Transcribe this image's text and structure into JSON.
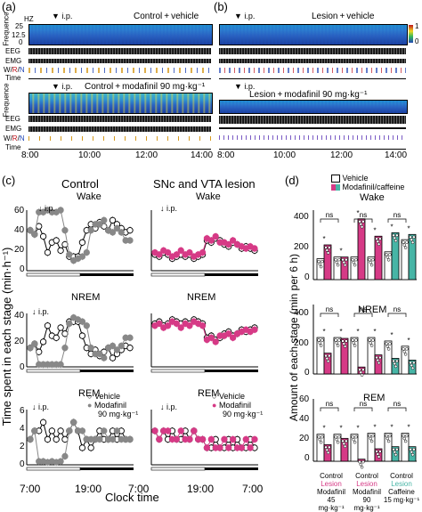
{
  "panels": {
    "a": {
      "label": "(a)",
      "top": {
        "title": "Control + vehicle",
        "ip": "i.p.",
        "hz": "HZ",
        "ticks": [
          "25",
          "12.5",
          "0"
        ]
      },
      "bottom": {
        "title": "Control + modafinil 90 mg·kg⁻¹",
        "ip": "i.p."
      },
      "rows": [
        "EEG",
        "EMG",
        "W/R/N",
        "Time"
      ],
      "wrn": {
        "w": "W",
        "r": "R",
        "n": "N",
        "slash": "/"
      },
      "ylabel": "Frequence",
      "times": [
        "8:00",
        "10:00",
        "12:00",
        "14:00"
      ]
    },
    "b": {
      "label": "(b)",
      "top": {
        "title": "Lesion + vehicle",
        "ip": "i.p."
      },
      "bottom": {
        "title": "Lesion + modafinil 90 mg·kg⁻¹",
        "ip": "i.p."
      },
      "colorbar": [
        "1",
        "0"
      ],
      "times": [
        "8:00",
        "10:00",
        "12:00",
        "14:00"
      ]
    },
    "c": {
      "label": "(c)",
      "col_left": "Control",
      "col_right": "SNc and VTA lesion",
      "ylabel": "Time spent in each stage (min·h⁻¹)",
      "xlabel": "Clock time",
      "xticks": [
        "7:00",
        "19:00",
        "7:00"
      ],
      "ip": "i.p.",
      "rows": [
        {
          "stage": "Wake",
          "yticks": [
            "60",
            "40",
            "20",
            "0"
          ]
        },
        {
          "stage": "NREM",
          "yticks": [
            "40",
            "20",
            "0"
          ]
        },
        {
          "stage": "REM",
          "yticks": [
            "6",
            "4",
            "2",
            "0"
          ]
        }
      ],
      "legend": {
        "vehicle": "Vehicle",
        "modafinil": "Modafinil",
        "dose": "90 mg·kg⁻¹"
      }
    },
    "d": {
      "label": "(d)",
      "ylabel": "Amount of each stage (min per 6 h)",
      "legend": {
        "vehicle": "Vehicle",
        "drug": "Modafinil/caffeine"
      },
      "rows": [
        {
          "stage": "Wake",
          "yticks": [
            "400",
            "200",
            "0"
          ]
        },
        {
          "stage": "NREM",
          "yticks": [
            "400",
            "200",
            "0"
          ]
        },
        {
          "stage": "REM",
          "yticks": [
            "60",
            "40",
            "20",
            "0"
          ]
        }
      ],
      "groups": [
        {
          "control": "Control",
          "lesion": "Lesion",
          "drug": "Modafinil",
          "dose": "45 mg·kg⁻¹"
        },
        {
          "control": "Control",
          "lesion": "Lesion",
          "drug": "Modafinil",
          "dose": "90 mg·kg⁻¹"
        },
        {
          "control": "Control",
          "lesion": "Lesion",
          "drug": "Caffeine",
          "dose": "15 mg·kg⁻¹"
        }
      ],
      "sig": {
        "star": "*",
        "ns": "ns",
        "hash": "#"
      },
      "colors": {
        "pink": "#d63a86",
        "teal": "#47b5a6"
      }
    }
  },
  "chart_data": [
    {
      "type": "bar",
      "panel": "d-wake",
      "ylim": [
        0,
        400
      ],
      "categories": [
        "Mod45 Ctrl",
        "Mod45 Les",
        "Mod90 Ctrl",
        "Mod90 Les",
        "Caf15 Ctrl",
        "Caf15 Les"
      ],
      "series": [
        {
          "name": "Vehicle",
          "values": [
            120,
            130,
            130,
            130,
            160,
            230
          ]
        },
        {
          "name": "Modafinil/caffeine",
          "values": [
            200,
            130,
            350,
            250,
            270,
            260
          ]
        }
      ]
    },
    {
      "type": "bar",
      "panel": "d-nrem",
      "ylim": [
        0,
        400
      ],
      "categories": [
        "Mod45 Ctrl",
        "Mod45 Les",
        "Mod90 Ctrl",
        "Mod90 Les",
        "Caf15 Ctrl",
        "Caf15 Les"
      ],
      "series": [
        {
          "name": "Vehicle",
          "values": [
            210,
            210,
            210,
            210,
            190,
            160
          ]
        },
        {
          "name": "Modafinil/caffeine",
          "values": [
            120,
            205,
            40,
            110,
            90,
            80
          ]
        }
      ]
    },
    {
      "type": "bar",
      "panel": "d-rem",
      "ylim": [
        0,
        60
      ],
      "categories": [
        "Mod45 Ctrl",
        "Mod45 Les",
        "Mod90 Ctrl",
        "Mod90 Les",
        "Caf15 Ctrl",
        "Caf15 Les"
      ],
      "series": [
        {
          "name": "Vehicle",
          "values": [
            26,
            26,
            26,
            27,
            27,
            27
          ]
        },
        {
          "name": "Modafinil/caffeine",
          "values": [
            16,
            22,
            2,
            12,
            14,
            14
          ]
        }
      ]
    },
    {
      "type": "line",
      "panel": "c-control-wake",
      "ylim": [
        0,
        60
      ],
      "series": [
        {
          "name": "Vehicle",
          "values": [
            40,
            36,
            44,
            34,
            18,
            28,
            30,
            20,
            26,
            14,
            14,
            14,
            28,
            40,
            46,
            42,
            48,
            44,
            40,
            50,
            46,
            42,
            38,
            40
          ]
        },
        {
          "name": "Modafinil",
          "values": [
            40,
            36,
            58,
            58,
            60,
            58,
            58,
            60,
            40,
            16,
            10,
            12,
            14,
            18,
            40,
            46,
            46,
            50,
            40,
            38,
            42,
            38,
            30,
            30
          ]
        }
      ]
    },
    {
      "type": "line",
      "panel": "c-lesion-wake",
      "ylim": [
        0,
        60
      ],
      "series": [
        {
          "name": "Vehicle",
          "values": [
            16,
            14,
            18,
            16,
            12,
            14,
            16,
            14,
            16,
            12,
            14,
            16,
            30,
            28,
            32,
            30,
            26,
            24,
            28,
            26,
            22,
            24,
            22,
            20
          ]
        },
        {
          "name": "Modafinil",
          "values": [
            18,
            16,
            20,
            18,
            14,
            16,
            20,
            16,
            18,
            14,
            16,
            18,
            32,
            30,
            34,
            28,
            28,
            26,
            30,
            26,
            24,
            22,
            24,
            22
          ]
        }
      ]
    }
  ]
}
